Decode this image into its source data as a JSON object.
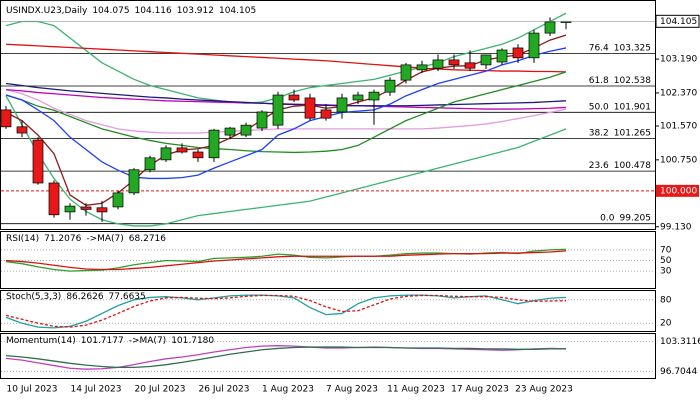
{
  "chart_data": [
    {
      "type": "candlestick",
      "title": "USINDX.U23,Daily",
      "categories": [
        null,
        null,
        "10 Jul 2023",
        null,
        null,
        null,
        "14 Jul 2023",
        null,
        null,
        null,
        "20 Jul 2023",
        null,
        null,
        null,
        "26 Jul 2023",
        null,
        null,
        null,
        "1 Aug 2023",
        null,
        null,
        null,
        "7 Aug 2023",
        null,
        null,
        null,
        "11 Aug 2023",
        null,
        null,
        null,
        "17 Aug 2023",
        null,
        null,
        null,
        "23 Aug 2023",
        null
      ],
      "open": [
        101.96,
        101.55,
        101.23,
        100.19,
        99.49,
        99.61,
        99.59,
        99.61,
        99.95,
        100.51,
        100.75,
        101.04,
        100.94,
        100.8,
        101.35,
        101.35,
        101.52,
        101.59,
        102.32,
        102.25,
        101.96,
        101.91,
        102.2,
        102.2,
        102.39,
        102.68,
        102.93,
        102.97,
        103.17,
        103.1,
        103.05,
        103.12,
        103.46,
        103.22,
        103.82,
        104.075
      ],
      "high": [
        102.05,
        101.7,
        101.3,
        100.25,
        99.7,
        99.7,
        99.75,
        100.0,
        100.55,
        100.85,
        101.1,
        101.15,
        101.0,
        101.5,
        101.55,
        101.65,
        101.95,
        102.4,
        102.45,
        102.35,
        102.1,
        102.35,
        102.4,
        102.45,
        102.75,
        103.1,
        103.15,
        103.3,
        103.3,
        103.4,
        103.3,
        103.45,
        103.55,
        103.9,
        104.2,
        104.116
      ],
      "low": [
        101.5,
        101.3,
        100.15,
        99.35,
        99.3,
        99.4,
        99.25,
        99.55,
        99.9,
        100.45,
        100.7,
        100.9,
        100.7,
        100.7,
        101.25,
        101.3,
        101.45,
        101.5,
        102.15,
        101.7,
        101.7,
        101.75,
        102.1,
        101.6,
        102.3,
        102.6,
        102.85,
        102.9,
        102.95,
        102.9,
        102.95,
        103.05,
        103.1,
        103.1,
        103.75,
        103.912
      ],
      "close": [
        101.55,
        101.4,
        100.19,
        99.42,
        99.63,
        99.55,
        99.49,
        99.95,
        100.51,
        100.8,
        101.04,
        100.94,
        100.8,
        101.47,
        101.52,
        101.59,
        101.91,
        102.32,
        102.2,
        101.76,
        101.76,
        102.25,
        102.32,
        102.39,
        102.68,
        103.05,
        103.05,
        103.17,
        103.05,
        102.97,
        103.29,
        103.41,
        103.22,
        103.82,
        104.09,
        104.105
      ],
      "up_color": "#22a822",
      "down_color": "#e81818",
      "series": [
        {
          "color": "#3cb371",
          "values": [
            104.0,
            104.1,
            104.1,
            104.0,
            103.7,
            103.4,
            103.1,
            102.9,
            102.7,
            102.55,
            102.45,
            102.35,
            102.25,
            102.2,
            102.15,
            102.12,
            102.15,
            102.25,
            102.4,
            102.5,
            102.55,
            102.6,
            102.65,
            102.7,
            102.8,
            102.9,
            103.0,
            103.1,
            103.25,
            103.35,
            103.45,
            103.55,
            103.7,
            103.9,
            104.1,
            104.3
          ]
        },
        {
          "color": "#3cb371",
          "values": [
            102.3,
            101.6,
            100.9,
            100.3,
            99.8,
            99.5,
            99.3,
            99.2,
            99.15,
            99.15,
            99.2,
            99.3,
            99.4,
            99.45,
            99.5,
            99.55,
            99.6,
            99.65,
            99.7,
            99.75,
            99.85,
            99.95,
            100.05,
            100.15,
            100.25,
            100.35,
            100.45,
            100.55,
            100.65,
            100.75,
            100.85,
            100.95,
            101.05,
            101.2,
            101.35,
            101.5
          ]
        },
        {
          "color": "#e39be3",
          "values": [
            102.45,
            102.35,
            102.2,
            102.0,
            101.85,
            101.7,
            101.6,
            101.5,
            101.45,
            101.42,
            101.4,
            101.4,
            101.4,
            101.42,
            101.44,
            101.46,
            101.48,
            101.5,
            101.5,
            101.5,
            101.5,
            101.5,
            101.5,
            101.5,
            101.5,
            101.5,
            101.5,
            101.52,
            101.55,
            101.58,
            101.62,
            101.68,
            101.75,
            101.82,
            101.9,
            101.98
          ]
        },
        {
          "color": "#c000c0",
          "values": [
            102.45,
            102.42,
            102.38,
            102.35,
            102.32,
            102.29,
            102.26,
            102.24,
            102.22,
            102.2,
            102.18,
            102.17,
            102.16,
            102.15,
            102.14,
            102.13,
            102.12,
            102.11,
            102.1,
            102.09,
            102.08,
            102.07,
            102.06,
            102.05,
            102.04,
            102.03,
            102.02,
            102.01,
            102.0,
            101.99,
            101.98,
            101.98,
            101.98,
            101.99,
            102.0,
            102.02
          ]
        },
        {
          "color": "#1a1a7a",
          "values": [
            102.6,
            102.55,
            102.5,
            102.46,
            102.42,
            102.39,
            102.36,
            102.33,
            102.3,
            102.27,
            102.25,
            102.22,
            102.2,
            102.18,
            102.16,
            102.14,
            102.12,
            102.1,
            102.09,
            102.08,
            102.07,
            102.06,
            102.06,
            102.06,
            102.06,
            102.06,
            102.07,
            102.08,
            102.09,
            102.1,
            102.11,
            102.12,
            102.13,
            102.14,
            102.16,
            102.18
          ]
        },
        {
          "color": "#e01010",
          "values": [
            103.55,
            103.53,
            103.51,
            103.49,
            103.47,
            103.45,
            103.43,
            103.41,
            103.39,
            103.37,
            103.35,
            103.33,
            103.31,
            103.29,
            103.27,
            103.25,
            103.23,
            103.21,
            103.19,
            103.17,
            103.15,
            103.12,
            103.09,
            103.06,
            103.03,
            103.0,
            102.97,
            102.95,
            102.93,
            102.92,
            102.91,
            102.9,
            102.9,
            102.89,
            102.89,
            102.88
          ]
        },
        {
          "color": "#228b22",
          "values": [
            102.32,
            102.2,
            102.05,
            101.95,
            101.8,
            101.65,
            101.5,
            101.4,
            101.3,
            101.22,
            101.15,
            101.1,
            101.05,
            101.02,
            101.0,
            100.97,
            100.95,
            100.94,
            100.93,
            100.94,
            100.96,
            101.0,
            101.1,
            101.3,
            101.5,
            101.7,
            101.85,
            102.0,
            102.15,
            102.25,
            102.35,
            102.45,
            102.55,
            102.65,
            102.75,
            102.88
          ]
        },
        {
          "color": "#1f3fff",
          "values": [
            102.32,
            102.2,
            101.96,
            101.7,
            101.3,
            101.0,
            100.7,
            100.5,
            100.33,
            100.3,
            100.3,
            100.32,
            100.38,
            100.55,
            100.7,
            100.85,
            101.0,
            101.35,
            101.5,
            101.7,
            101.8,
            101.9,
            101.93,
            101.96,
            102.1,
            102.3,
            102.45,
            102.6,
            102.7,
            102.8,
            102.9,
            103.05,
            103.15,
            103.28,
            103.38,
            103.46
          ]
        },
        {
          "color": "#8b1a1a",
          "values": [
            101.9,
            101.7,
            101.35,
            100.9,
            99.9,
            99.65,
            99.7,
            99.95,
            100.26,
            100.62,
            100.87,
            100.99,
            101.02,
            101.1,
            101.28,
            101.47,
            101.72,
            101.96,
            102.05,
            102.08,
            102.0,
            102.04,
            102.15,
            102.25,
            102.45,
            102.68,
            102.88,
            102.97,
            103.02,
            103.03,
            103.17,
            103.24,
            103.29,
            103.46,
            103.65,
            103.77
          ]
        }
      ],
      "fib_levels": [
        {
          "label": "76.4",
          "value": 103.325
        },
        {
          "label": "61.8",
          "value": 102.538
        },
        {
          "label": "50.0",
          "value": 101.901
        },
        {
          "label": "38.2",
          "value": 101.265
        },
        {
          "label": "23.6",
          "value": 100.478
        },
        {
          "label": "0.0",
          "value": 99.205
        }
      ],
      "alert_line": {
        "value": 100,
        "label": "100.000",
        "color": "#e81818"
      },
      "ylim": [
        99.1,
        104.5
      ],
      "yticks": [
        {
          "value": 103.19,
          "label": "103.190"
        },
        {
          "value": 102.37,
          "label": "102.370"
        },
        {
          "value": 101.57,
          "label": "101.570"
        },
        {
          "value": 100.75,
          "label": "100.750"
        },
        {
          "value": 99.13,
          "label": "99.130"
        }
      ]
    },
    {
      "type": "line",
      "series": [
        {
          "name": "RSI(14)",
          "color": "#2e9e2e",
          "values": [
            48,
            44,
            38,
            33,
            30,
            31,
            32,
            36,
            42,
            46,
            50,
            49,
            48,
            54,
            55,
            56,
            58,
            62,
            60,
            56,
            55,
            57,
            58,
            58,
            60,
            63,
            64,
            64,
            63,
            62,
            64,
            65,
            63,
            68,
            70,
            71.2076
          ]
        },
        {
          "name": "->MA(7)",
          "color": "#e01010",
          "values": [
            50,
            48,
            45,
            41,
            37,
            34,
            33,
            33,
            35,
            37,
            40,
            43,
            46,
            49,
            51,
            53,
            55,
            57,
            58,
            58,
            58,
            58,
            58,
            58,
            58,
            60,
            61,
            62,
            63,
            63,
            63,
            64,
            64,
            65,
            66,
            68.2716
          ]
        }
      ],
      "ylim": [
        0,
        100
      ],
      "yticks": [
        70,
        50,
        30
      ]
    },
    {
      "type": "line",
      "title": "Stoch(5,3,3)",
      "series": [
        {
          "color": "#20a0a0",
          "values": [
            35,
            20,
            10,
            8,
            12,
            25,
            45,
            65,
            80,
            86,
            88,
            85,
            80,
            85,
            90,
            92,
            92,
            90,
            85,
            60,
            42,
            45,
            70,
            85,
            90,
            92,
            92,
            90,
            85,
            88,
            90,
            80,
            70,
            78,
            84,
            86.2626
          ]
        },
        {
          "color": "#e01010",
          "dashed": true,
          "values": [
            40,
            30,
            20,
            12,
            10,
            15,
            28,
            45,
            63,
            77,
            85,
            86,
            84,
            83,
            85,
            89,
            91,
            91,
            89,
            78,
            62,
            50,
            52,
            67,
            82,
            89,
            91,
            91,
            89,
            88,
            88,
            86,
            80,
            76,
            77,
            77.6635
          ]
        }
      ],
      "ylim": [
        0,
        100
      ],
      "yticks": [
        80,
        20
      ]
    },
    {
      "type": "line",
      "series": [
        {
          "name": "Momentum(14)",
          "color": "#c040c0",
          "values": [
            99.6,
            99.2,
            98.6,
            98.0,
            97.4,
            97.2,
            97.3,
            97.6,
            98.2,
            98.9,
            99.5,
            99.9,
            100.4,
            101.0,
            101.5,
            102.0,
            102.3,
            102.4,
            102.3,
            102.1,
            101.9,
            101.9,
            102.0,
            102.1,
            102.0,
            101.9,
            101.8,
            101.8,
            101.7,
            101.6,
            101.5,
            101.4,
            101.5,
            101.7,
            101.8,
            101.7177
          ]
        },
        {
          "name": "->MA(7)",
          "color": "#2f6f4f",
          "values": [
            100.2,
            99.9,
            99.5,
            99.0,
            98.5,
            98.1,
            97.8,
            97.6,
            97.6,
            97.8,
            98.2,
            98.7,
            99.3,
            99.9,
            100.5,
            101.0,
            101.5,
            101.8,
            102.0,
            102.1,
            102.1,
            102.1,
            102.0,
            102.0,
            102.0,
            101.9,
            101.9,
            101.9,
            101.8,
            101.8,
            101.7,
            101.7,
            101.6,
            101.6,
            101.7,
            101.718
          ],
          "value_labels": [
            null,
            null,
            null,
            null,
            null,
            null,
            null,
            null,
            null,
            null,
            null,
            null,
            null,
            null,
            null,
            null,
            null,
            null,
            null,
            null,
            null,
            null,
            null,
            null,
            null,
            null,
            null,
            null,
            null,
            null,
            null,
            null,
            null,
            null,
            null,
            "101.7180"
          ]
        }
      ],
      "ylim": [
        95.47,
        104.55
      ],
      "yticks": [
        103.3116,
        96.7044
      ]
    }
  ]
}
